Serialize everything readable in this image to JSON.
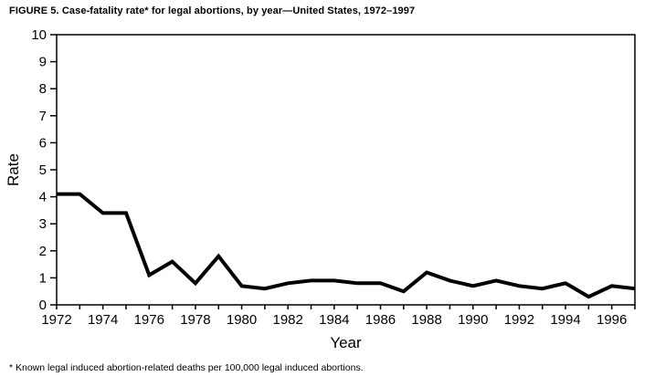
{
  "figure": {
    "title": "FIGURE 5. Case-fatality rate* for legal abortions, by year—United States, 1972–1997",
    "footnote": "* Known legal induced abortion-related deaths per 100,000 legal induced abortions."
  },
  "chart_data": {
    "type": "line",
    "title": "FIGURE 5. Case-fatality rate* for legal abortions, by year—United States, 1972–1997",
    "xlabel": "Year",
    "ylabel": "Rate",
    "x": [
      1972,
      1973,
      1974,
      1975,
      1976,
      1977,
      1978,
      1979,
      1980,
      1981,
      1982,
      1983,
      1984,
      1985,
      1986,
      1987,
      1988,
      1989,
      1990,
      1991,
      1992,
      1993,
      1994,
      1995,
      1996,
      1997
    ],
    "values": [
      4.1,
      4.1,
      3.4,
      3.4,
      1.1,
      1.6,
      0.8,
      1.8,
      0.7,
      0.6,
      0.8,
      0.9,
      0.9,
      0.8,
      0.8,
      0.5,
      1.2,
      0.9,
      0.7,
      0.9,
      0.7,
      0.6,
      0.8,
      0.3,
      0.7,
      0.6
    ],
    "xlim": [
      1972,
      1997
    ],
    "ylim": [
      0,
      10
    ],
    "y_ticks": [
      0,
      1,
      2,
      3,
      4,
      5,
      6,
      7,
      8,
      9,
      10
    ],
    "x_tick_step": 1,
    "x_label_step": 2,
    "grid": false,
    "legend": "none",
    "line_color": "#000000",
    "axis_color": "#000000",
    "background_color": "#ffffff"
  }
}
